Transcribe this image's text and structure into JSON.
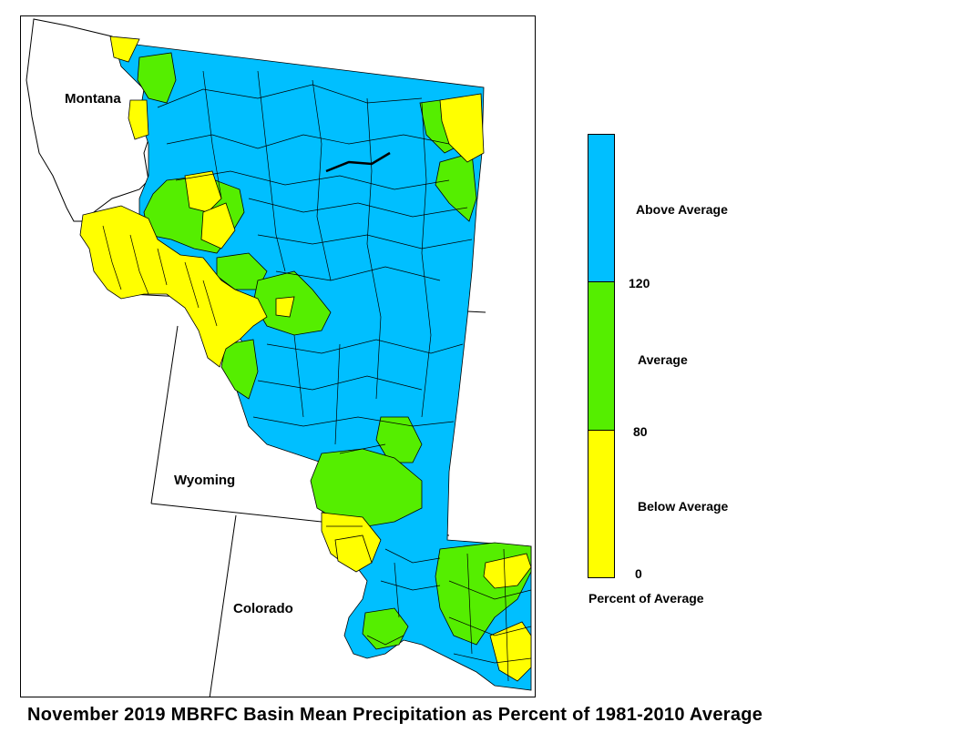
{
  "map": {
    "state_labels": {
      "montana": "Montana",
      "wyoming": "Wyoming",
      "colorado": "Colorado"
    },
    "colors": {
      "above": "#00bfff",
      "average": "#55ee00",
      "below": "#ffff00",
      "outline": "#000000"
    }
  },
  "legend": {
    "categories": [
      {
        "label": "Above Average",
        "color": "#00bfff",
        "range": [
          120,
          null
        ]
      },
      {
        "label": "Average",
        "color": "#55ee00",
        "range": [
          80,
          120
        ]
      },
      {
        "label": "Below Average",
        "color": "#ffff00",
        "range": [
          0,
          80
        ]
      }
    ],
    "ticks": [
      "120",
      "80",
      "0"
    ],
    "title": "Percent of Average"
  },
  "caption": "November 2019 MBRFC Basin Mean Precipitation as Percent of 1981-2010 Average"
}
